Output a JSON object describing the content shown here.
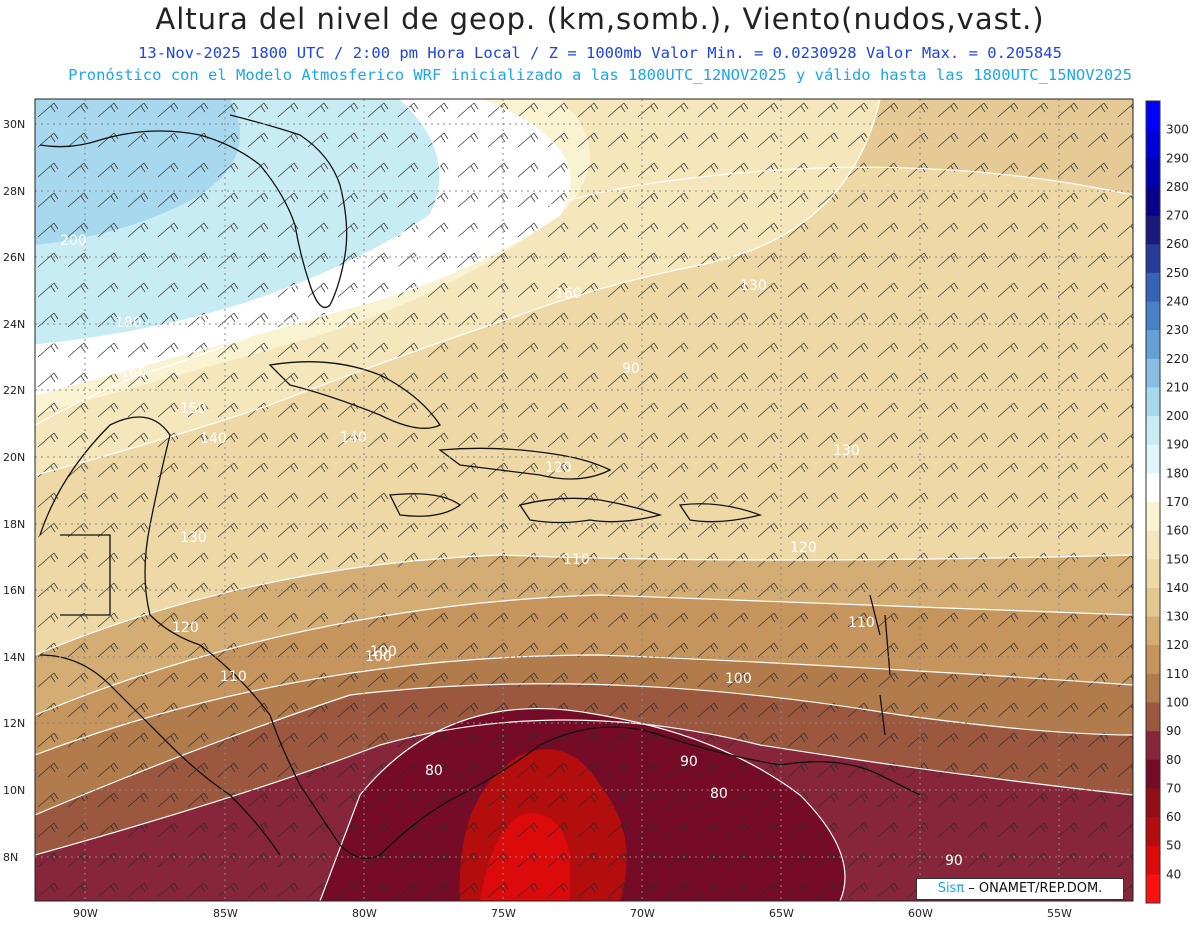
{
  "header": {
    "title": "Altura del nivel de geop. (km,somb.), Viento(nudos,vast.)",
    "subtitle": "13-Nov-2025  1800 UTC / 2:00 pm Hora Local / Z = 1000mb  Valor Min. = 0.0230928  Valor Max. = 0.205845",
    "forecast_line": "Pronóstico con el Modelo Atmosferico WRF inicializado a las 1800UTC_12NOV2025 y válido hasta las  1800UTC_15NOV2025"
  },
  "map": {
    "longitude_labels": [
      "90W",
      "85W",
      "80W",
      "75W",
      "70W",
      "65W",
      "60W",
      "55W"
    ],
    "latitude_labels": [
      "30N",
      "28N",
      "26N",
      "24N",
      "22N",
      "20N",
      "18N",
      "16N",
      "14N",
      "12N",
      "10N",
      "8N"
    ],
    "contour_labels": [
      "200",
      "180",
      "160",
      "150",
      "140",
      "130",
      "120",
      "110",
      "100",
      "90",
      "80",
      "160",
      "140",
      "130",
      "120",
      "110",
      "100",
      "90",
      "80",
      "90",
      "120",
      "110",
      "100",
      "130"
    ]
  },
  "colorbar": {
    "ticks": [
      "300",
      "290",
      "280",
      "270",
      "260",
      "250",
      "240",
      "230",
      "220",
      "210",
      "200",
      "190",
      "180",
      "170",
      "160",
      "150",
      "140",
      "130",
      "120",
      "110",
      "100",
      "90",
      "80",
      "70",
      "60",
      "50",
      "40"
    ],
    "colors": [
      "#0000ff",
      "#0000d8",
      "#0000b0",
      "#08008a",
      "#1a1a7a",
      "#283a9a",
      "#3464b4",
      "#4880c6",
      "#64a0d6",
      "#88bee4",
      "#a8d8ee",
      "#c8ecf4",
      "#e0f6fa",
      "#ffffff",
      "#faf3d2",
      "#f5e7bb",
      "#edd9a6",
      "#e3c790",
      "#d4ad75",
      "#c6945d",
      "#b27b4c",
      "#9b583f",
      "#87263a",
      "#760b27",
      "#920e17",
      "#b40d0e",
      "#dc0a0a",
      "#ff1010"
    ]
  },
  "credit": {
    "brand": "Sisπ",
    "text": " – ONAMET/REP.DOM."
  }
}
